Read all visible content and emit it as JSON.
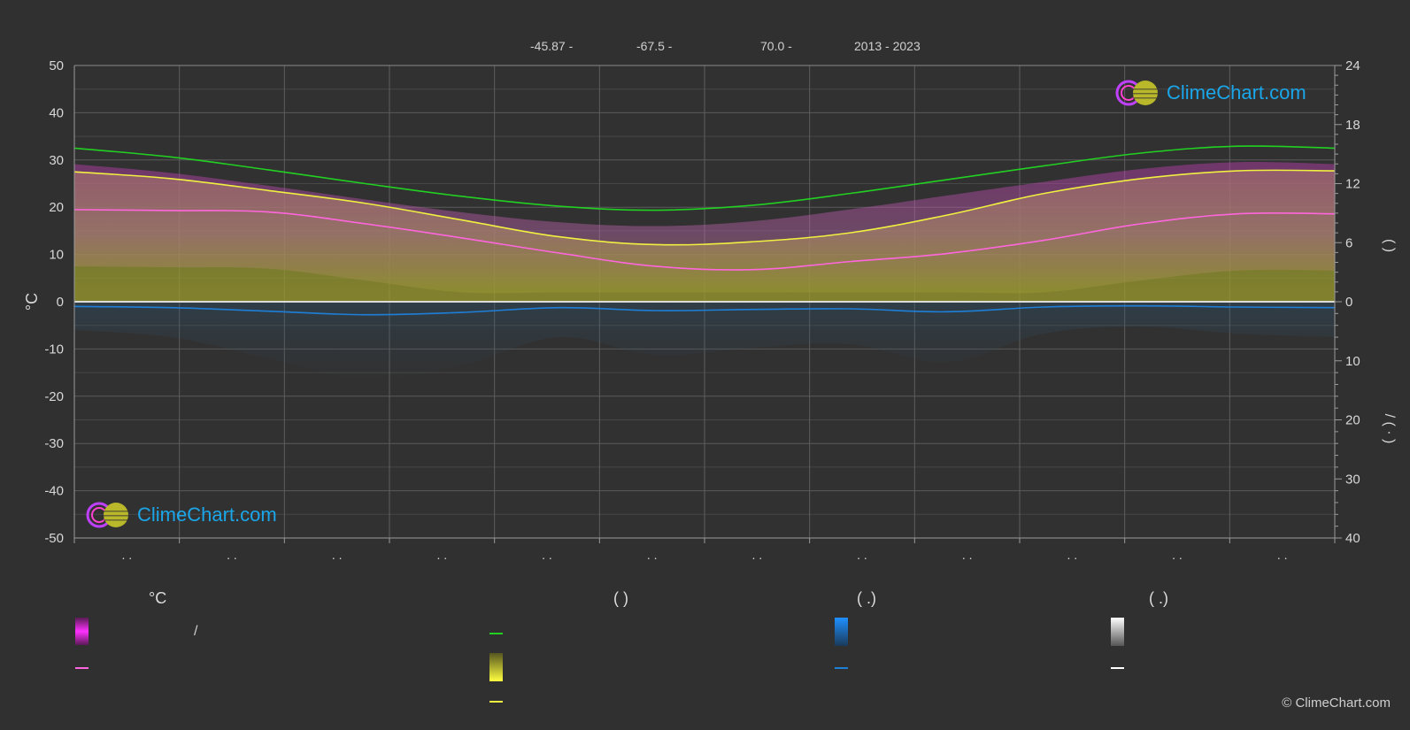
{
  "header": {
    "lat": "-45.87 -",
    "lon": "-67.5 -",
    "elev": "70.0 -",
    "years": "2013 - 2023"
  },
  "watermark": "ClimeChart.com",
  "copyright": "© ClimeChart.com",
  "legend": {
    "col1_head": "°C",
    "col1_item1": "/",
    "col2_head": "(          )",
    "col3_head": "(   .)",
    "col4_head": "(   .)"
  },
  "colors": {
    "daylight": "#22d022",
    "sunshine": "#f0f040",
    "temp_mean": "#ff66dd",
    "temp_band": "#d040c0",
    "rain": "#1e7fd8",
    "snow": "#ffffff"
  },
  "chart_data": {
    "type": "area",
    "x_months": 12,
    "left_axis": {
      "label": "°C",
      "ylim": [
        -50,
        50
      ],
      "ticks": [
        50,
        40,
        30,
        20,
        10,
        0,
        -10,
        -20,
        -30,
        -40,
        -50
      ]
    },
    "right_axis_top": {
      "label": "(   )",
      "ylim": [
        0,
        24
      ],
      "ticks": [
        24,
        18,
        12,
        6,
        0
      ]
    },
    "right_axis_bottom": {
      "label": "/ (  ·  )",
      "ylim": [
        0,
        40
      ],
      "ticks": [
        0,
        10,
        20,
        30,
        40
      ]
    },
    "x_tick_labels": [
      ". .",
      ". .",
      ". .",
      ". .",
      ". .",
      ". .",
      ". .",
      ". .",
      ". .",
      ". .",
      ". .",
      ". ."
    ],
    "series": [
      {
        "key": "daylight",
        "axis": "right_top",
        "values": [
          15.6,
          14.7,
          13.4,
          12.0,
          10.7,
          9.7,
          9.3,
          9.8,
          11.0,
          12.4,
          13.8,
          15.1,
          15.8,
          15.6
        ]
      },
      {
        "key": "sunshine",
        "axis": "right_top",
        "values": [
          13.2,
          12.5,
          11.3,
          10.0,
          8.3,
          6.6,
          5.8,
          6.1,
          7.0,
          8.8,
          11.0,
          12.5,
          13.3,
          13.3
        ]
      },
      {
        "key": "temp_mean",
        "axis": "left",
        "values": [
          19.5,
          19.3,
          19.0,
          16.5,
          13.5,
          10.3,
          7.5,
          6.8,
          8.5,
          10.2,
          13.0,
          16.5,
          18.6,
          18.6
        ]
      },
      {
        "key": "rain_mean",
        "axis": "right_bottom",
        "values": [
          0.8,
          1.0,
          1.6,
          2.2,
          1.8,
          1.0,
          1.5,
          1.3,
          1.2,
          1.7,
          0.9,
          0.7,
          0.9,
          1.0
        ]
      }
    ]
  }
}
